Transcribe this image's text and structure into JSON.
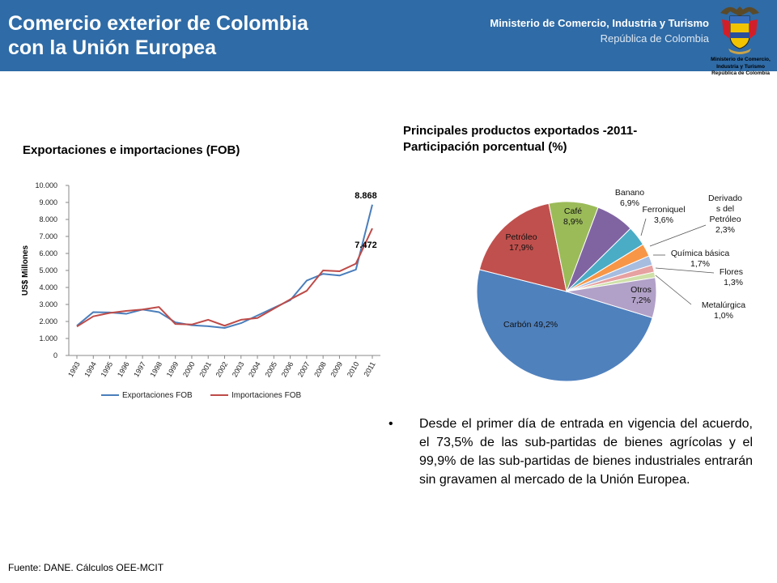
{
  "header": {
    "title_line1": "Comercio exterior de Colombia",
    "title_line2": "con la Unión Europea",
    "ministry_name": "Ministerio de Comercio, Industria y Turismo",
    "ministry_republic": "República de Colombia",
    "crest_caption_1": "Ministerio de Comercio,",
    "crest_caption_2": "Industria y Turismo",
    "crest_caption_3": "República de Colombia",
    "colors": {
      "banner": "#2f6ba6"
    }
  },
  "chart_data": [
    {
      "type": "line",
      "title": "Exportaciones e importaciones (FOB)",
      "ylabel": "US$ Millones",
      "ylim": [
        0,
        10000
      ],
      "yticks": [
        "0",
        "1.000",
        "2.000",
        "3.000",
        "4.000",
        "5.000",
        "6.000",
        "7.000",
        "8.000",
        "9.000",
        "10.000"
      ],
      "x": [
        "1993",
        "1994",
        "1995",
        "1996",
        "1997",
        "1998",
        "1999",
        "2000",
        "2001",
        "2002",
        "2003",
        "2004",
        "2005",
        "2006",
        "2007",
        "2008",
        "2009",
        "2010",
        "2011"
      ],
      "legend": "bottom",
      "series": [
        {
          "name": "Exportaciones FOB",
          "color": "#4a7ebb",
          "values": [
            1750,
            2550,
            2530,
            2450,
            2700,
            2550,
            1950,
            1780,
            1720,
            1620,
            1900,
            2350,
            2800,
            3250,
            4400,
            4800,
            4700,
            5050,
            8868
          ]
        },
        {
          "name": "Importaciones FOB",
          "color": "#be4b48",
          "values": [
            1700,
            2300,
            2500,
            2620,
            2700,
            2850,
            1850,
            1820,
            2100,
            1750,
            2100,
            2200,
            2750,
            3300,
            3800,
            5000,
            4950,
            5400,
            7472
          ]
        }
      ],
      "annotations": [
        "8.868",
        "7.472"
      ]
    },
    {
      "type": "pie",
      "title": "Principales productos exportados -2011- Participación porcentual (%)",
      "slices": [
        {
          "label": "Carbón 49,2%",
          "value": 49.2,
          "color": "#4f81bd"
        },
        {
          "label": "Petróleo 17,9%",
          "value": 17.9,
          "color": "#c0504d"
        },
        {
          "label": "Café 8,9%",
          "value": 8.9,
          "color": "#9bbb59"
        },
        {
          "label": "Banano 6,9%",
          "value": 6.9,
          "color": "#8064a2"
        },
        {
          "label": "Ferroniquel 3,6%",
          "value": 3.6,
          "color": "#4bacc6"
        },
        {
          "label": "Derivados del Petróleo 2,3%",
          "value": 2.3,
          "color": "#f79646"
        },
        {
          "label": "Química básica 1,7%",
          "value": 1.7,
          "color": "#a6bde0"
        },
        {
          "label": "Flores 1,3%",
          "value": 1.3,
          "color": "#e6a1a0"
        },
        {
          "label": "Metalúrgica 1,0%",
          "value": 1.0,
          "color": "#cfe0a8"
        },
        {
          "label": "Otros 7,2%",
          "value": 7.2,
          "color": "#b1a0c7"
        }
      ]
    }
  ],
  "bullet_text": "Desde el primer día de entrada en vigencia del acuerdo, el 73,5% de las sub-partidas de bienes agrícolas y el 99,9% de las sub-partidas de bienes industriales entrarán sin gravamen al mercado de la Unión Europea.",
  "source": "Fuente: DANE. Cálculos OEE-MCIT"
}
